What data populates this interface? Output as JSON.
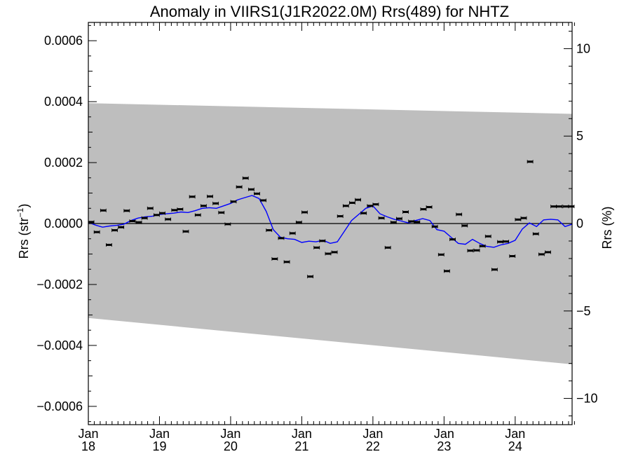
{
  "chart_data": {
    "type": "scatter",
    "title": "Anomaly in VIIRS1(J1R2022.0M) Rrs(489) for NHTZ",
    "ylabel_left": {
      "base": "Rrs (str",
      "sup": "−1",
      "end": ")"
    },
    "ylabel_right": "Rrs (%)",
    "xlim": [
      2018.0,
      2024.8
    ],
    "ylim_left": [
      -0.00066,
      0.00066
    ],
    "ylim_right": [
      -11.5,
      11.5
    ],
    "x_ticks": [
      {
        "x": 2018,
        "month": "Jan",
        "year": "18"
      },
      {
        "x": 2019,
        "month": "Jan",
        "year": "19"
      },
      {
        "x": 2020,
        "month": "Jan",
        "year": "20"
      },
      {
        "x": 2021,
        "month": "Jan",
        "year": "21"
      },
      {
        "x": 2022,
        "month": "Jan",
        "year": "22"
      },
      {
        "x": 2023,
        "month": "Jan",
        "year": "23"
      },
      {
        "x": 2024,
        "month": "Jan",
        "year": "24"
      }
    ],
    "y_ticks_left": [
      {
        "value": 0.0006,
        "label": "0.0006"
      },
      {
        "value": 0.0004,
        "label": "0.0004"
      },
      {
        "value": 0.0002,
        "label": "0.0002"
      },
      {
        "value": 0.0,
        "label": "0.0000"
      },
      {
        "value": -0.0002,
        "label": "−0.0002"
      },
      {
        "value": -0.0004,
        "label": "−0.0004"
      },
      {
        "value": -0.0006,
        "label": "−0.0006"
      }
    ],
    "y_ticks_right": [
      {
        "value": 10,
        "label": "10"
      },
      {
        "value": 5,
        "label": "5"
      },
      {
        "value": 0,
        "label": "0"
      },
      {
        "value": -5,
        "label": "−5"
      },
      {
        "value": -10,
        "label": "−10"
      }
    ],
    "colors": {
      "band": "#bebebe",
      "smooth": "#0000ff",
      "points": "#000000",
      "zero_line": "#000000"
    },
    "band": {
      "x": [
        2018.0,
        2024.8
      ],
      "upper": [
        0.000395,
        0.00036
      ],
      "lower": [
        -0.00031,
        -0.000462
      ]
    },
    "series": [
      {
        "kind": "monthly_anomaly",
        "x": [
          2018.04,
          2018.12,
          2018.21,
          2018.29,
          2018.37,
          2018.46,
          2018.54,
          2018.62,
          2018.71,
          2018.79,
          2018.87,
          2018.96,
          2019.04,
          2019.12,
          2019.21,
          2019.29,
          2019.37,
          2019.46,
          2019.54,
          2019.62,
          2019.71,
          2019.79,
          2019.87,
          2019.96,
          2020.04,
          2020.12,
          2020.21,
          2020.29,
          2020.37,
          2020.46,
          2020.54,
          2020.62,
          2020.71,
          2020.79,
          2020.87,
          2020.96,
          2021.04,
          2021.12,
          2021.21,
          2021.29,
          2021.37,
          2021.46,
          2021.54,
          2021.62,
          2021.71,
          2021.79,
          2021.87,
          2021.96,
          2022.04,
          2022.12,
          2022.21,
          2022.29,
          2022.37,
          2022.46,
          2022.54,
          2022.62,
          2022.71,
          2022.79,
          2022.87,
          2022.96,
          2023.04,
          2023.12,
          2023.21,
          2023.29,
          2023.37,
          2023.46,
          2023.54,
          2023.62,
          2023.71,
          2023.79,
          2023.87,
          2023.96,
          2024.04,
          2024.12,
          2024.21,
          2024.29,
          2024.37,
          2024.46,
          2024.54,
          2024.62,
          2024.71,
          2024.79
        ],
        "y": [
          5e-06,
          -2.8e-05,
          4.3e-05,
          -7e-05,
          -2.2e-05,
          -1.2e-05,
          4.2e-05,
          8e-06,
          4e-06,
          1.8e-05,
          5e-05,
          2.8e-05,
          3.4e-05,
          1.4e-05,
          4.4e-05,
          4.7e-05,
          -2.6e-05,
          8.8e-05,
          2.8e-05,
          5.8e-05,
          8.9e-05,
          6.6e-05,
          3.6e-05,
          -2e-06,
          7.2e-05,
          0.00012,
          0.000149,
          0.000112,
          9.8e-05,
          7.6e-05,
          -2.2e-05,
          -0.000116,
          -4.8e-05,
          -0.000126,
          -3.2e-05,
          4e-06,
          3.7e-05,
          -0.000174,
          -7.9e-05,
          -5.7e-05,
          -9.9e-05,
          -9.4e-05,
          2.4e-05,
          5.8e-05,
          6.8e-05,
          7.8e-05,
          3.4e-05,
          5.8e-05,
          6.3e-05,
          1.8e-05,
          -7.9e-05,
          4e-06,
          1.6e-05,
          3.8e-05,
          7e-06,
          5e-06,
          4.7e-05,
          5.4e-05,
          -1e-05,
          -0.000102,
          -0.000156,
          -5.2e-05,
          3e-05,
          -7e-06,
          -8.9e-05,
          -8.8e-05,
          -7.4e-05,
          -4.2e-05,
          -0.000151,
          -6e-05,
          -5.9e-05,
          -0.000107,
          1.3e-05,
          1.8e-05,
          0.000203,
          -3.4e-05,
          -0.000101,
          -9.4e-05,
          5.6e-05,
          5.6e-05,
          5.6e-05,
          5.6e-05
        ]
      },
      {
        "kind": "running_mean",
        "x": [
          2018.0,
          2018.1,
          2018.2,
          2018.3,
          2018.4,
          2018.5,
          2018.6,
          2018.7,
          2018.8,
          2018.9,
          2019.0,
          2019.1,
          2019.2,
          2019.3,
          2019.4,
          2019.5,
          2019.6,
          2019.7,
          2019.8,
          2019.9,
          2020.0,
          2020.1,
          2020.2,
          2020.3,
          2020.4,
          2020.5,
          2020.6,
          2020.7,
          2020.8,
          2020.9,
          2021.0,
          2021.1,
          2021.2,
          2021.3,
          2021.4,
          2021.5,
          2021.6,
          2021.7,
          2021.8,
          2021.9,
          2022.0,
          2022.1,
          2022.2,
          2022.3,
          2022.4,
          2022.5,
          2022.6,
          2022.7,
          2022.8,
          2022.9,
          2023.0,
          2023.1,
          2023.2,
          2023.3,
          2023.4,
          2023.5,
          2023.6,
          2023.7,
          2023.8,
          2023.9,
          2024.0,
          2024.1,
          2024.2,
          2024.3,
          2024.4,
          2024.5,
          2024.6,
          2024.7,
          2024.8
        ],
        "y": [
          4e-06,
          -5e-06,
          -1.2e-05,
          -8e-06,
          -6e-06,
          -2e-06,
          1e-05,
          1.8e-05,
          2.2e-05,
          2.4e-05,
          3e-05,
          3.2e-05,
          3.4e-05,
          3.8e-05,
          3.6e-05,
          4.2e-05,
          5e-05,
          5.2e-05,
          5e-05,
          5.8e-05,
          6.6e-05,
          7.8e-05,
          8.5e-05,
          9.2e-05,
          8.2e-05,
          4e-05,
          -2e-05,
          -4.5e-05,
          -5e-05,
          -5.2e-05,
          -6.2e-05,
          -5.8e-05,
          -6e-05,
          -5.5e-05,
          -6.5e-05,
          -6e-05,
          -2.5e-05,
          1e-05,
          3e-05,
          5e-05,
          5.8e-05,
          3.2e-05,
          2.2e-05,
          1.4e-05,
          8e-06,
          2e-06,
          1e-05,
          1.6e-05,
          1e-05,
          -2e-05,
          -2.5e-05,
          -4.5e-05,
          -6.5e-05,
          -6.8e-05,
          -5.2e-05,
          -6.5e-05,
          -7.5e-05,
          -7.8e-05,
          -7e-05,
          -6.5e-05,
          -5.5e-05,
          -1.8e-05,
          2e-06,
          -1e-05,
          1.2e-05,
          1.4e-05,
          1.2e-05,
          -1e-05,
          -2e-06
        ]
      }
    ]
  }
}
